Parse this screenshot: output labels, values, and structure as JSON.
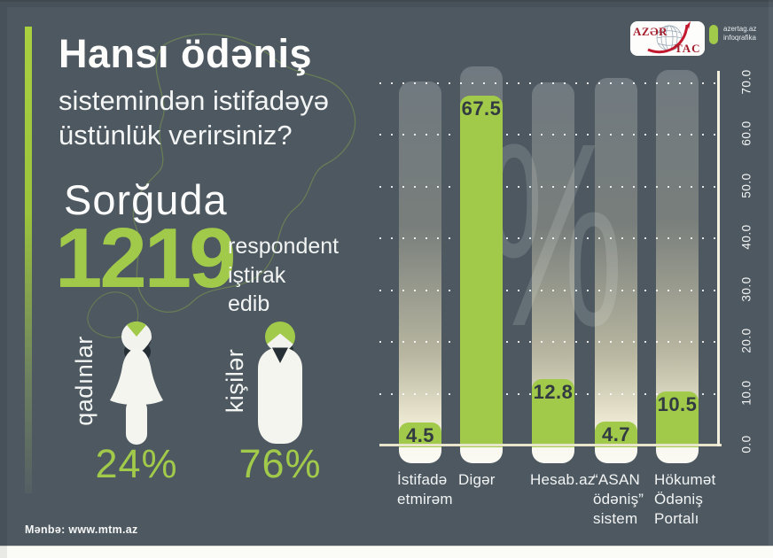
{
  "page": {
    "background": "#4d5861",
    "accent_green": "#a2ca4a"
  },
  "header": {
    "title_bold": "Hansı ödəniş",
    "title_rest": "sistemindən istifadəyə\nüstünlük verirsiniz?"
  },
  "survey": {
    "lead": "Sorğuda",
    "count": "1219",
    "tail": "respondent\niştirak\nedib"
  },
  "gender": {
    "female": {
      "label": "qadınlar",
      "value": "24%"
    },
    "male": {
      "label": "kişilər",
      "value": "76%"
    }
  },
  "brand": {
    "logo_top": "AZƏR",
    "logo_bottom": "TAC",
    "tagline": "azertag.az\ninfoqrafika"
  },
  "source": "Mənbə: www.mtm.az",
  "watermark": "%",
  "chart_data": {
    "type": "bar",
    "title": "Hansı ödəniş sistemindən istifadəyə üstünlük verirsiniz?",
    "unit": "%",
    "categories": [
      "İstifadə etmirəm",
      "Digər",
      "Hesab.az",
      "“ASAN ödəniş” sistem",
      "Hökumət Ödəniş Portalı"
    ],
    "category_display": [
      "İstifadə\netmirəm",
      "Digər",
      "Hesab.az",
      "“ASAN\nödəniş”\nsistem",
      "Hökumət\nÖdəniş\nPortalı"
    ],
    "values": [
      4.5,
      67.5,
      12.8,
      4.7,
      10.5
    ],
    "value_labels": [
      "4.5",
      "67.5",
      "12.8",
      "4.7",
      "10.5"
    ],
    "ylim": [
      0,
      70
    ],
    "yticks": [
      0,
      10,
      20,
      30,
      40,
      50,
      60,
      70
    ],
    "ytick_labels": [
      "0.0",
      "10.0",
      "20.0",
      "30.0",
      "40.0",
      "50.0",
      "60.0",
      "70.0"
    ],
    "grid": "dotted-horizontal",
    "axis_side": "right",
    "bar_color": "#a2ca4a",
    "legend_position": "none"
  }
}
